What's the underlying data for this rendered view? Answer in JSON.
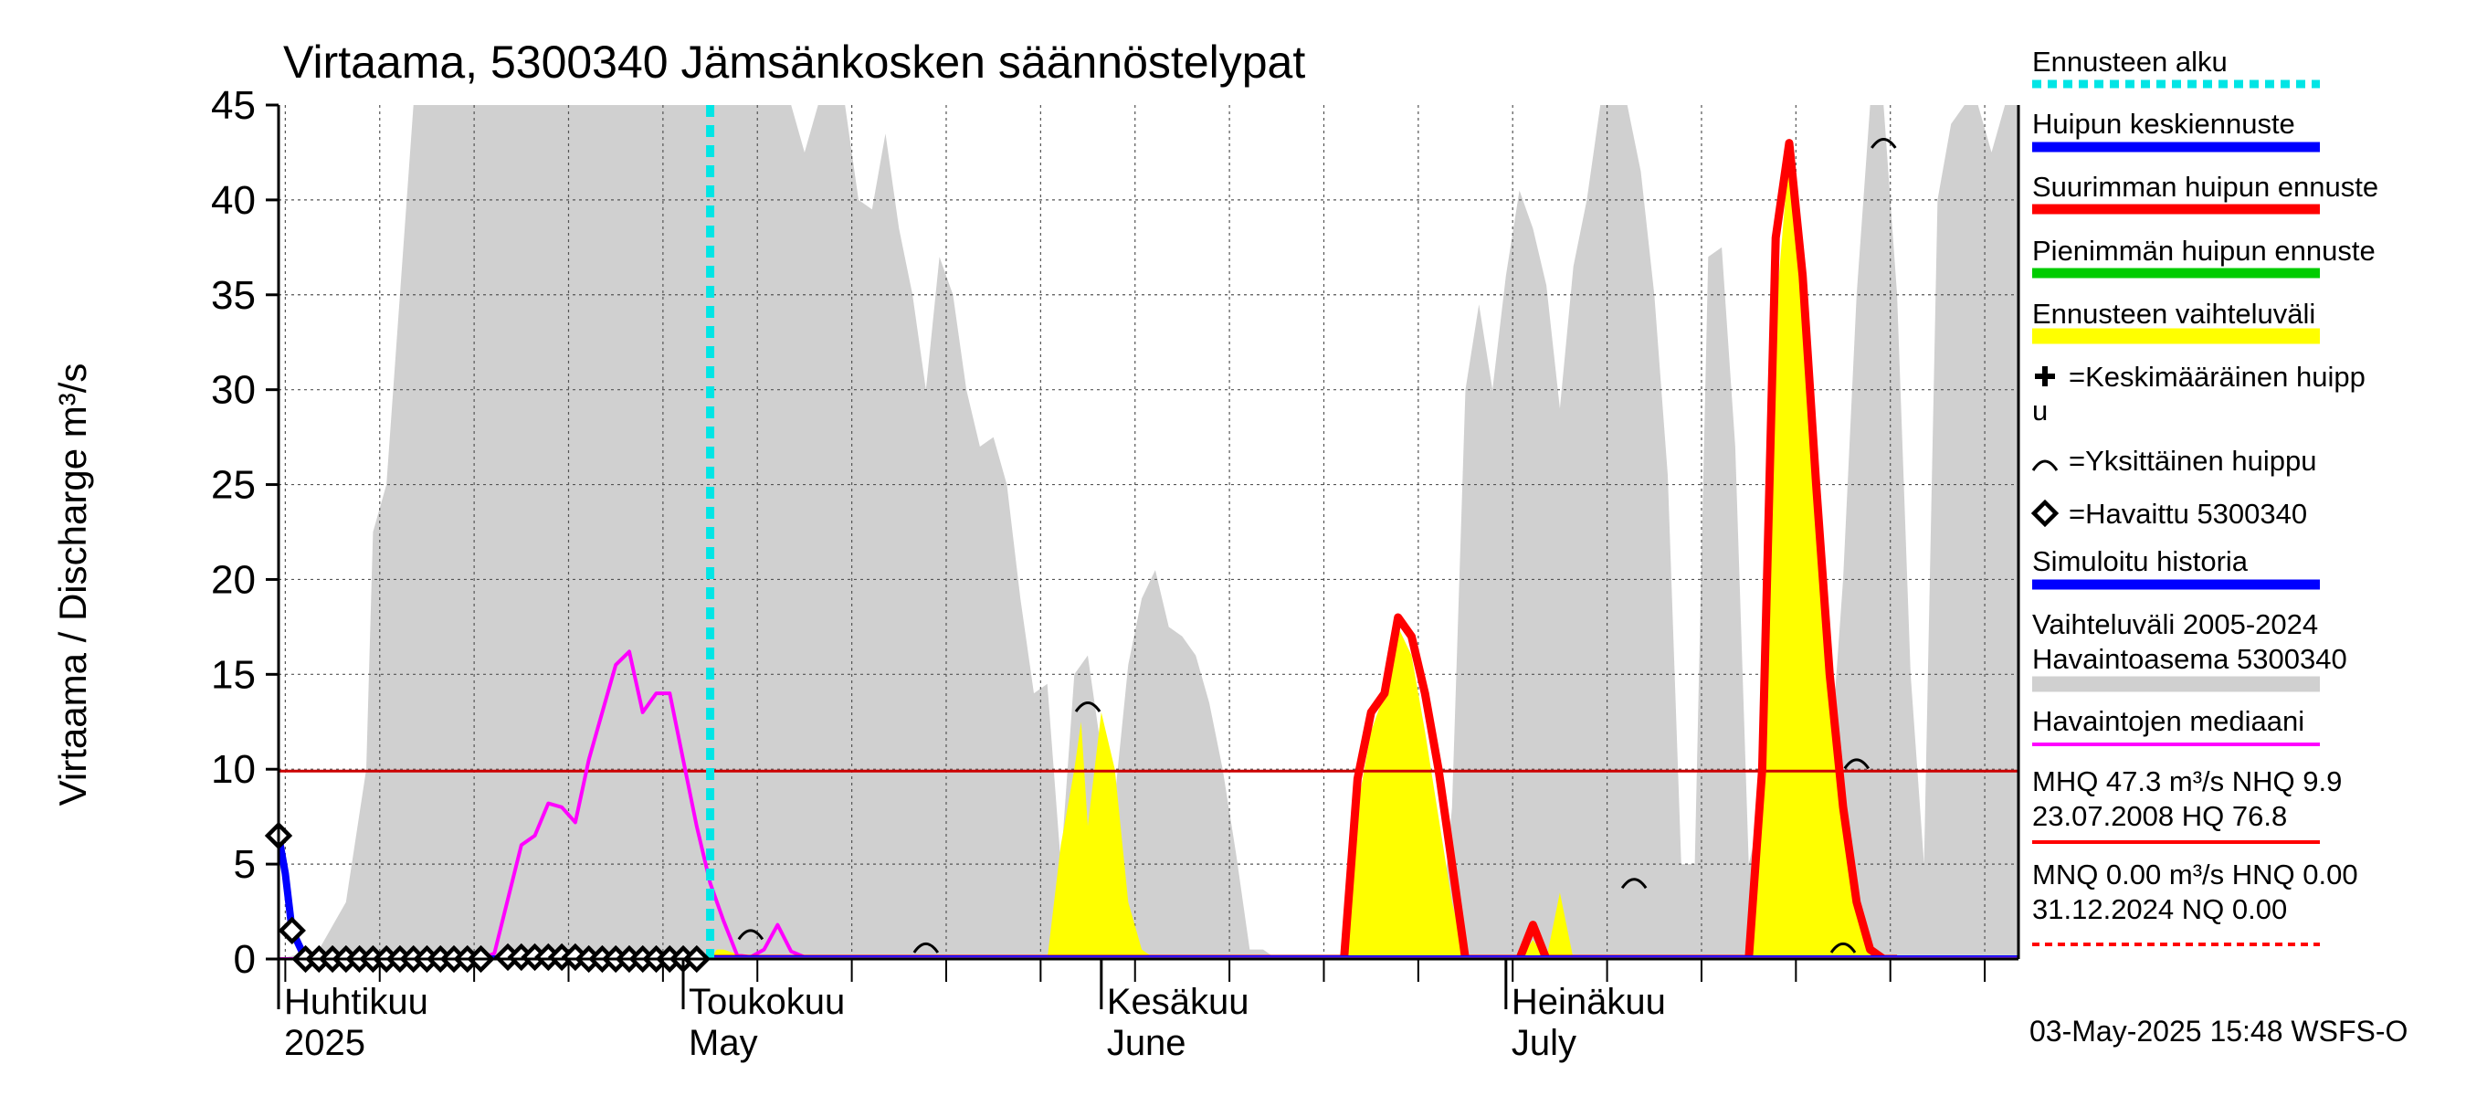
{
  "chart_data": {
    "type": "area",
    "title": "Virtaama, 5300340 Jämsänkosken säännöstelypat",
    "ylabel": "Virtaama / Discharge   m³/s",
    "ylim": [
      0,
      45
    ],
    "yticks": [
      0,
      5,
      10,
      15,
      20,
      25,
      30,
      35,
      40,
      45
    ],
    "xlim_days": [
      0,
      129
    ],
    "x_unit": "days since 1 April 2025",
    "month_labels": [
      {
        "fi": "Huhtikuu",
        "en": "2025",
        "day": 0
      },
      {
        "fi": "Toukokuu",
        "en": "May",
        "day": 30
      },
      {
        "fi": "Kesäkuu",
        "en": "June",
        "day": 61
      },
      {
        "fi": "Heinäkuu",
        "en": "July",
        "day": 91
      }
    ],
    "forecast_start_day": 32,
    "reference_level": 9.9,
    "history_range_2005_2024": {
      "x": [
        0,
        3,
        5,
        6.5,
        7,
        8,
        9,
        10,
        12,
        15,
        20,
        25,
        30,
        35,
        38,
        39,
        40,
        41,
        42,
        43,
        44,
        45,
        46,
        47,
        48,
        49,
        50,
        51,
        52,
        53,
        54,
        55,
        56,
        57,
        58,
        59,
        60,
        61,
        62,
        63,
        64,
        65,
        66,
        67,
        68,
        69,
        70,
        71,
        72,
        73,
        74,
        75,
        76,
        77,
        78,
        79,
        80,
        81,
        82,
        83,
        84,
        85,
        86,
        87,
        88,
        89,
        90,
        91,
        92,
        93,
        94,
        95,
        96,
        97,
        98,
        99,
        100,
        101,
        102,
        103,
        104,
        105,
        106,
        107,
        108,
        109,
        110,
        111,
        112,
        113,
        114,
        115,
        116,
        117,
        118,
        119,
        120,
        121,
        122,
        123,
        124,
        125,
        126,
        127,
        128,
        129
      ],
      "low": [
        0,
        0,
        0,
        0,
        0,
        0,
        0,
        0,
        0,
        0,
        0,
        0,
        0,
        0,
        0,
        0,
        0,
        0,
        0,
        0,
        0,
        0,
        0,
        0,
        0,
        0,
        0,
        0,
        0,
        0,
        0,
        0,
        0,
        0,
        0,
        0,
        0,
        0,
        0,
        0,
        0,
        0,
        0,
        0,
        0,
        0,
        0,
        0,
        0,
        0,
        0,
        0,
        0,
        0,
        0,
        0,
        0,
        0,
        0,
        0,
        0,
        0,
        0,
        0,
        0,
        0,
        0,
        0,
        0,
        0,
        0,
        0,
        0,
        0,
        0,
        0,
        0,
        0,
        0,
        0,
        0,
        0,
        0,
        0,
        0,
        0,
        0,
        0,
        0,
        0,
        0,
        0,
        0,
        0,
        0,
        0,
        0,
        0,
        0,
        0,
        0,
        0,
        0,
        0,
        0,
        0
      ],
      "high": [
        0,
        0.5,
        3,
        10,
        22.5,
        25,
        35,
        45,
        45,
        45,
        45,
        45,
        45,
        45,
        45,
        42.5,
        45,
        45,
        45,
        40,
        39.5,
        43.5,
        38.5,
        35,
        30,
        37,
        35,
        30,
        27,
        27.5,
        25,
        19,
        14,
        14.5,
        5,
        15,
        16,
        11,
        8.5,
        15.5,
        19,
        20.5,
        17.5,
        17,
        16,
        13.5,
        10,
        5.5,
        0.5,
        0.5,
        0,
        0,
        0,
        0,
        0,
        0,
        0,
        0,
        0,
        4,
        0,
        0,
        0,
        8,
        30,
        34.5,
        30,
        36,
        40.5,
        38.5,
        35.5,
        29,
        36.5,
        40,
        45,
        45,
        45,
        41.5,
        35,
        25.5,
        5,
        5,
        37,
        37.5,
        27,
        5,
        8,
        5,
        3,
        1,
        0.5,
        10,
        20,
        35,
        45,
        45,
        35,
        15,
        5,
        40,
        44,
        45,
        45,
        42.5,
        45,
        45
      ]
    },
    "forecast_range": {
      "x": [
        32,
        32.5,
        33,
        35,
        40,
        57,
        58,
        59,
        59.5,
        60,
        61,
        62,
        63,
        64,
        65,
        79,
        80,
        81,
        82,
        83,
        84,
        85,
        87,
        88,
        92,
        93,
        94,
        95,
        96,
        109,
        110,
        111,
        112,
        113,
        114,
        115,
        116,
        117,
        118,
        119,
        120,
        121
      ],
      "high": [
        0,
        0.5,
        0.5,
        0,
        0,
        0,
        6,
        10,
        12.5,
        7,
        13,
        10,
        3,
        0.5,
        0,
        0,
        8,
        12,
        14,
        17.5,
        16,
        12,
        3,
        0,
        0,
        1,
        0,
        3.5,
        0,
        0,
        9.5,
        34,
        42.5,
        36,
        25,
        15,
        8,
        3,
        0.5,
        0,
        0,
        0
      ]
    },
    "series": [
      {
        "name": "Havaintojen mediaani",
        "color": "#ff00ff",
        "x": [
          0,
          15,
          16,
          18,
          19,
          20,
          21,
          22,
          23,
          24,
          25,
          26,
          27,
          28,
          29,
          30,
          31,
          32,
          33,
          34,
          35,
          36,
          37,
          38,
          39,
          40,
          129
        ],
        "y": [
          0,
          0,
          0.3,
          6,
          6.5,
          8.2,
          8,
          7.2,
          10.5,
          13,
          15.5,
          16.2,
          13,
          14,
          14,
          10.5,
          7,
          4,
          2,
          0.2,
          0.1,
          0.5,
          1.8,
          0.4,
          0.1,
          0,
          0
        ]
      },
      {
        "name": "Suurimman huipun ennuste",
        "color": "#ff0000",
        "x": [
          32,
          79,
          80,
          81,
          82,
          83,
          84,
          85,
          86,
          87,
          88,
          92,
          93,
          94,
          109,
          110,
          111,
          112,
          113,
          114,
          115,
          116,
          117,
          118,
          119,
          120
        ],
        "y": [
          0,
          0,
          9.5,
          13,
          14,
          18,
          17,
          14,
          10,
          5,
          0,
          0,
          1.8,
          0,
          0,
          10,
          38,
          43,
          36,
          25,
          15,
          8,
          3,
          0.5,
          0,
          0
        ]
      },
      {
        "name": "Simuloitu historia",
        "color": "#0000ff",
        "x": [
          0,
          0.5,
          1,
          2,
          32,
          129
        ],
        "y": [
          6.5,
          4.5,
          1.5,
          0,
          0,
          0
        ]
      }
    ],
    "observations": {
      "name": "Havaittu 5300340",
      "x": [
        0,
        1,
        2,
        3,
        4,
        5,
        6,
        7,
        8,
        9,
        10,
        11,
        12,
        13,
        14,
        15,
        17,
        18,
        19,
        20,
        21,
        22,
        23,
        24,
        25,
        26,
        27,
        28,
        29,
        30,
        31
      ],
      "y": [
        6.5,
        1.5,
        0,
        0,
        0,
        0,
        0,
        0,
        0,
        0,
        0,
        0,
        0,
        0,
        0,
        0,
        0.1,
        0.1,
        0.1,
        0.1,
        0.1,
        0.1,
        0,
        0,
        0,
        0,
        0,
        0,
        0,
        0,
        0
      ]
    },
    "single_peaks": [
      {
        "x": 35,
        "y": 0.8
      },
      {
        "x": 48,
        "y": 0.1
      },
      {
        "x": 60,
        "y": 12.8
      },
      {
        "x": 100.5,
        "y": 3.5
      },
      {
        "x": 116,
        "y": 0.1
      },
      {
        "x": 117,
        "y": 9.8
      },
      {
        "x": 119,
        "y": 42.5
      }
    ],
    "legend": [
      {
        "label": "Ennusteen alku",
        "color": "#00e5e5",
        "style": "dotted"
      },
      {
        "label": "Huipun keskiennuste",
        "color": "#0000ff",
        "style": "thick"
      },
      {
        "label": "Suurimman huipun ennuste",
        "color": "#ff0000",
        "style": "thick"
      },
      {
        "label": "Pienimmän huipun ennuste",
        "color": "#00cc00",
        "style": "thick"
      },
      {
        "label": "Ennusteen vaihteluväli",
        "color": "#ffff00",
        "style": "band"
      },
      {
        "label": "=Keskimääräinen huipp",
        "label2": "u",
        "marker": "plus"
      },
      {
        "label": "=Yksittäinen huippu",
        "marker": "arc"
      },
      {
        "label": "=Havaittu 5300340",
        "marker": "diamond"
      },
      {
        "label": "Simuloitu historia",
        "color": "#0000ff",
        "style": "thick"
      },
      {
        "label": "Vaihteluväli 2005-2024",
        "label2": " Havaintoasema 5300340",
        "color": "#d0d0d0",
        "style": "band"
      },
      {
        "label": "Havaintojen mediaani",
        "color": "#ff00ff",
        "style": "thin"
      },
      {
        "label": "MHQ 47.3 m³/s NHQ  9.9",
        "label2": "23.07.2008 HQ 76.8",
        "color": "#ff0000",
        "style": "thin"
      },
      {
        "label": "MNQ 0.00 m³/s HNQ 0.00",
        "label2": "31.12.2024 NQ 0.00",
        "color": "#ff0000",
        "style": "dashed"
      }
    ],
    "timestamp": "03-May-2025 15:48 WSFS-O"
  }
}
